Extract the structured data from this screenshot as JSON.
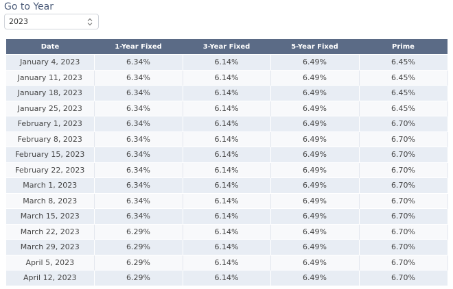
{
  "header": {
    "title": "Go to Year",
    "year_select": "2023"
  },
  "table": {
    "columns": [
      "Date",
      "1-Year Fixed",
      "3-Year Fixed",
      "5-Year Fixed",
      "Prime"
    ],
    "rows": [
      [
        "January 4, 2023",
        "6.34%",
        "6.14%",
        "6.49%",
        "6.45%"
      ],
      [
        "January 11, 2023",
        "6.34%",
        "6.14%",
        "6.49%",
        "6.45%"
      ],
      [
        "January 18, 2023",
        "6.34%",
        "6.14%",
        "6.49%",
        "6.45%"
      ],
      [
        "January 25, 2023",
        "6.34%",
        "6.14%",
        "6.49%",
        "6.45%"
      ],
      [
        "February 1, 2023",
        "6.34%",
        "6.14%",
        "6.49%",
        "6.70%"
      ],
      [
        "February 8, 2023",
        "6.34%",
        "6.14%",
        "6.49%",
        "6.70%"
      ],
      [
        "February 15, 2023",
        "6.34%",
        "6.14%",
        "6.49%",
        "6.70%"
      ],
      [
        "February 22, 2023",
        "6.34%",
        "6.14%",
        "6.49%",
        "6.70%"
      ],
      [
        "March 1, 2023",
        "6.34%",
        "6.14%",
        "6.49%",
        "6.70%"
      ],
      [
        "March 8, 2023",
        "6.34%",
        "6.14%",
        "6.49%",
        "6.70%"
      ],
      [
        "March 15, 2023",
        "6.34%",
        "6.14%",
        "6.49%",
        "6.70%"
      ],
      [
        "March 22, 2023",
        "6.29%",
        "6.14%",
        "6.49%",
        "6.70%"
      ],
      [
        "March 29, 2023",
        "6.29%",
        "6.14%",
        "6.49%",
        "6.70%"
      ],
      [
        "April 5, 2023",
        "6.29%",
        "6.14%",
        "6.49%",
        "6.70%"
      ],
      [
        "April 12, 2023",
        "6.29%",
        "6.14%",
        "6.49%",
        "6.70%"
      ]
    ]
  }
}
